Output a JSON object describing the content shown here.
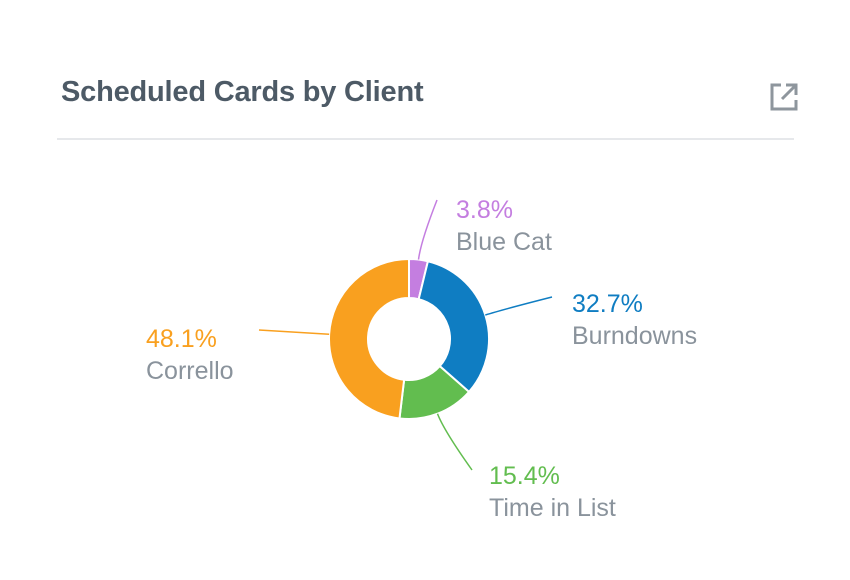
{
  "card": {
    "title": "Scheduled Cards by Client",
    "expand_icon": "open-external-icon"
  },
  "chart_data": {
    "type": "pie",
    "variant": "donut",
    "slices": [
      {
        "label": "Blue Cat",
        "value": 3.8,
        "value_label": "3.8%",
        "color": "#c47ee0"
      },
      {
        "label": "Burndowns",
        "value": 32.7,
        "value_label": "32.7%",
        "color": "#0f7dc2"
      },
      {
        "label": "Time in List",
        "value": 15.4,
        "value_label": "15.4%",
        "color": "#62bd4f"
      },
      {
        "label": "Corrello",
        "value": 48.1,
        "value_label": "48.1%",
        "color": "#f9a01f"
      }
    ],
    "label_color": "#8a939c"
  }
}
